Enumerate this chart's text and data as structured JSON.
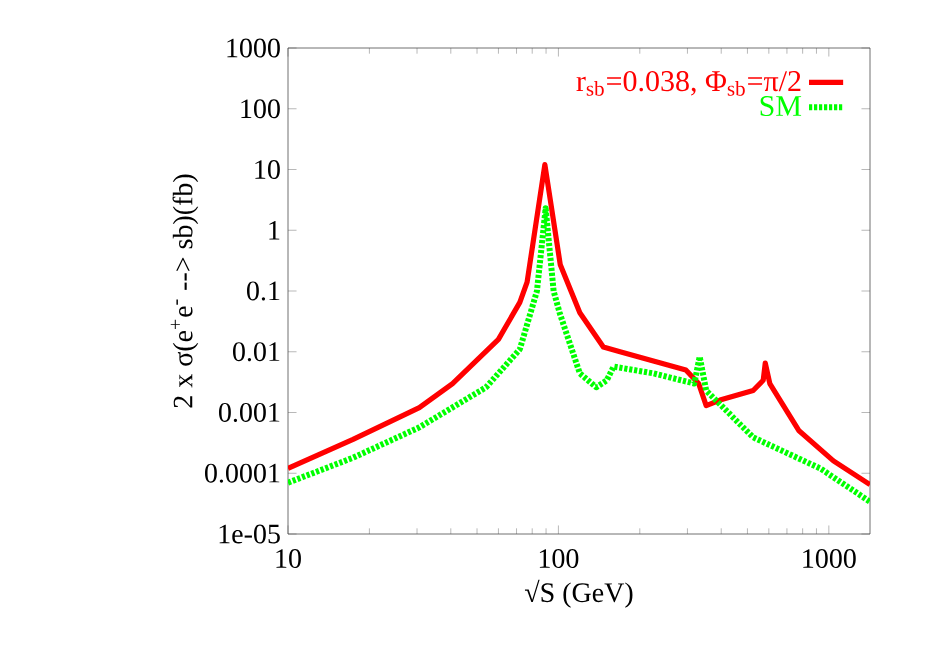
{
  "chart_data": {
    "type": "line",
    "xlabel": "√S (GeV)",
    "ylabel": "2 x σ(e$^{+}$e$^{-}$ --> sb)(fb)",
    "log": "xy",
    "xlim": [
      10,
      1420
    ],
    "ylim": [
      1e-05,
      1000
    ],
    "xticks": [
      10,
      100,
      1000
    ],
    "yticks": [
      1000,
      100,
      10,
      1,
      0.1,
      0.01,
      0.001,
      0.0001,
      {
        "value": 1e-05,
        "label": "1e-05"
      }
    ],
    "legend": "top right",
    "marker": "none",
    "series": [
      {
        "name": "r$_{sb}$=0.038, Φ$_{sb}$=π/2",
        "color": "#ff0000",
        "line_style": "solid",
        "x": [
          10,
          17.4,
          30.6,
          40.6,
          60,
          72,
          76.6,
          89.1,
          101.6,
          120,
          146.6,
          169,
          296,
          330,
          352,
          396,
          525,
          572,
          582,
          605,
          776,
          1040,
          1420
        ],
        "values": [
          0.00012,
          0.00036,
          0.0012,
          0.003,
          0.016,
          0.065,
          0.14,
          12,
          0.27,
          0.044,
          0.012,
          0.01,
          0.005,
          0.003,
          0.0013,
          0.0016,
          0.0023,
          0.0034,
          0.0065,
          0.003,
          0.0005,
          0.00016,
          6.5e-05
        ]
      },
      {
        "name": "SM",
        "color": "#00ff00",
        "line_style": "dotted",
        "x": [
          10,
          17.4,
          30.6,
          54,
          72,
          83.3,
          89.7,
          96,
          101,
          120,
          138,
          151,
          160,
          225,
          318,
          333,
          352,
          525,
          930,
          1420
        ],
        "values": [
          7e-05,
          0.00018,
          0.00057,
          0.0026,
          0.011,
          0.1,
          2.3,
          0.1,
          0.044,
          0.0044,
          0.0026,
          0.0034,
          0.0057,
          0.0044,
          0.003,
          0.0083,
          0.0023,
          0.00039,
          0.00012,
          3.4e-05
        ]
      }
    ]
  }
}
